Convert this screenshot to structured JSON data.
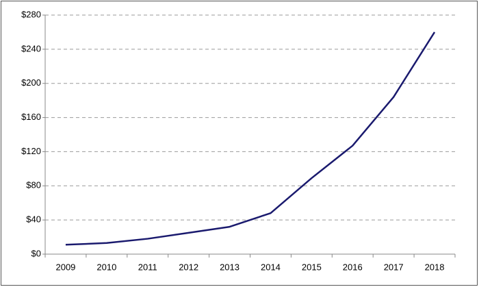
{
  "chart_data": {
    "type": "line",
    "categories": [
      "2009",
      "2010",
      "2011",
      "2012",
      "2013",
      "2014",
      "2015",
      "2016",
      "2017",
      "2018"
    ],
    "values": [
      11,
      13,
      18,
      25,
      32,
      48,
      89,
      127,
      184,
      260
    ],
    "color": "#1a1a6e",
    "ylim": [
      0,
      280
    ],
    "yticks": [
      {
        "value": 0,
        "label": "$0"
      },
      {
        "value": 40,
        "label": "$40"
      },
      {
        "value": 80,
        "label": "$80"
      },
      {
        "value": 120,
        "label": "$120"
      },
      {
        "value": 160,
        "label": "$160"
      },
      {
        "value": 200,
        "label": "$200"
      },
      {
        "value": 240,
        "label": "$240"
      },
      {
        "value": 280,
        "label": "$280"
      }
    ],
    "grid": true
  }
}
